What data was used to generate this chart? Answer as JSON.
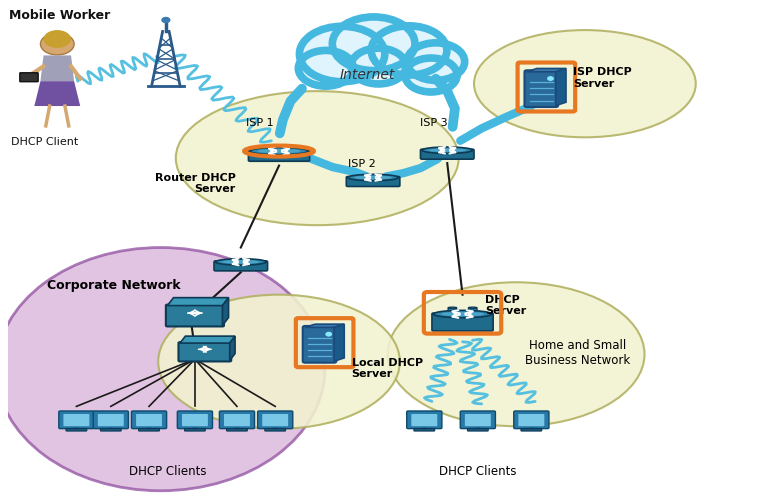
{
  "figsize": [
    7.75,
    5.02
  ],
  "dpi": 100,
  "bg": "#ffffff",
  "orange": "#e87722",
  "router_dark": "#1e6b8c",
  "router_mid": "#2e8ab0",
  "router_light": "#5ab0d0",
  "server_dark": "#1a5a7a",
  "line_c": "#1a1a1a",
  "cloud_c": "#5bc8e8",
  "wifi_c": "#5bc8e8",
  "zones": {
    "isp_zone": [
      0.4,
      0.685,
      0.185,
      0.135
    ],
    "isp_dhcp_zone": [
      0.755,
      0.835,
      0.14,
      0.105
    ],
    "corporate_zone": [
      0.205,
      0.265,
      0.215,
      0.24
    ],
    "local_zone": [
      0.355,
      0.28,
      0.155,
      0.13
    ],
    "home_zone": [
      0.665,
      0.295,
      0.165,
      0.14
    ]
  },
  "cloud": [
    0.48,
    0.87,
    0.13,
    0.095
  ],
  "routers": {
    "isp1": [
      0.355,
      0.695,
      true
    ],
    "isp2": [
      0.475,
      0.63,
      false
    ],
    "isp3": [
      0.575,
      0.695,
      false
    ],
    "corp_top": [
      0.305,
      0.475,
      false
    ],
    "home": [
      0.595,
      0.37,
      true
    ]
  },
  "labels": {
    "mobile_worker": [
      0.005,
      0.985,
      "Mobile Worker",
      9,
      "bold",
      "left"
    ],
    "dhcp_client_m": [
      0.045,
      0.735,
      "DHCP Client",
      8,
      "normal",
      "center"
    ],
    "internet": [
      0.47,
      0.855,
      "Internet",
      10,
      "italic",
      "center"
    ],
    "isp1_lbl": [
      0.335,
      0.745,
      "ISP 1",
      8,
      "normal",
      "center"
    ],
    "isp2_lbl": [
      0.46,
      0.66,
      "ISP 2",
      8,
      "normal",
      "center"
    ],
    "isp3_lbl": [
      0.565,
      0.745,
      "ISP 3",
      8,
      "normal",
      "center"
    ],
    "router_dhcp_lbl": [
      0.295,
      0.66,
      "Router DHCP\nServer",
      8,
      "normal",
      "right"
    ],
    "isp_dhcp_lbl": [
      0.74,
      0.845,
      "ISP DHCP\nServer",
      8,
      "normal",
      "left"
    ],
    "local_dhcp_lbl": [
      0.408,
      0.285,
      "Local DHCP\nServer",
      8,
      "normal",
      "left"
    ],
    "corporate_lbl": [
      0.052,
      0.415,
      "Corporate Network",
      9,
      "bold",
      "left"
    ],
    "corp_clients_lbl": [
      0.195,
      0.055,
      "DHCP Clients",
      8,
      "normal",
      "center"
    ],
    "dhcp_server_home": [
      0.625,
      0.385,
      "DHCP\nServer",
      8,
      "normal",
      "left"
    ],
    "home_net_lbl": [
      0.735,
      0.305,
      "Home and Small\nBusiness Network",
      8,
      "normal",
      "center"
    ],
    "home_clients_lbl": [
      0.635,
      0.055,
      "DHCP Clients",
      8,
      "normal",
      "center"
    ]
  }
}
